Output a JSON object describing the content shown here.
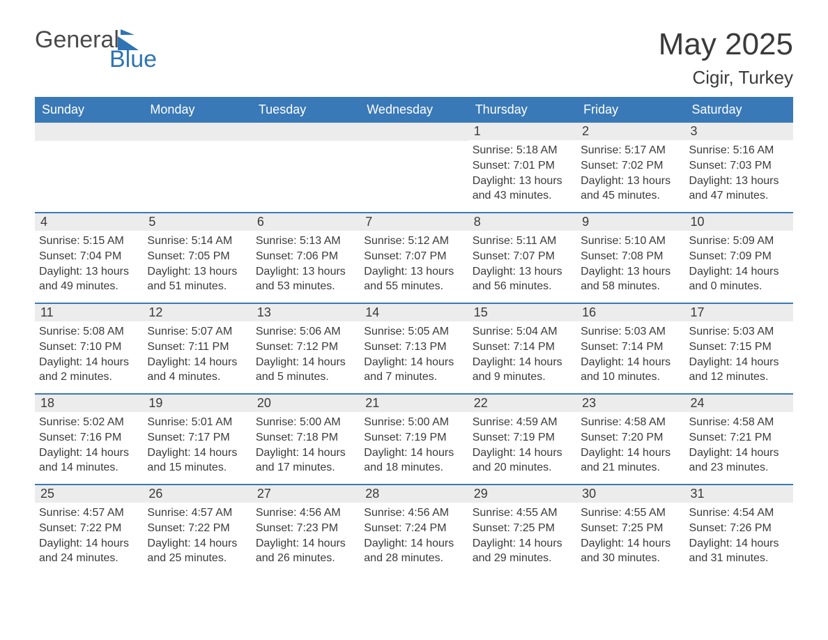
{
  "logo": {
    "word1": "General",
    "word2": "Blue"
  },
  "title": "May 2025",
  "location": "Cigir, Turkey",
  "colors": {
    "header_bg": "#3a79b7",
    "header_text": "#ffffff",
    "rule": "#3a79b7",
    "daynum_bg": "#ececec",
    "text": "#3a3a3a",
    "logo_accent": "#2e74b5"
  },
  "days_of_week": [
    "Sunday",
    "Monday",
    "Tuesday",
    "Wednesday",
    "Thursday",
    "Friday",
    "Saturday"
  ],
  "weeks": [
    [
      null,
      null,
      null,
      null,
      {
        "n": "1",
        "sr": "Sunrise: 5:18 AM",
        "ss": "Sunset: 7:01 PM",
        "d1": "Daylight: 13 hours",
        "d2": "and 43 minutes."
      },
      {
        "n": "2",
        "sr": "Sunrise: 5:17 AM",
        "ss": "Sunset: 7:02 PM",
        "d1": "Daylight: 13 hours",
        "d2": "and 45 minutes."
      },
      {
        "n": "3",
        "sr": "Sunrise: 5:16 AM",
        "ss": "Sunset: 7:03 PM",
        "d1": "Daylight: 13 hours",
        "d2": "and 47 minutes."
      }
    ],
    [
      {
        "n": "4",
        "sr": "Sunrise: 5:15 AM",
        "ss": "Sunset: 7:04 PM",
        "d1": "Daylight: 13 hours",
        "d2": "and 49 minutes."
      },
      {
        "n": "5",
        "sr": "Sunrise: 5:14 AM",
        "ss": "Sunset: 7:05 PM",
        "d1": "Daylight: 13 hours",
        "d2": "and 51 minutes."
      },
      {
        "n": "6",
        "sr": "Sunrise: 5:13 AM",
        "ss": "Sunset: 7:06 PM",
        "d1": "Daylight: 13 hours",
        "d2": "and 53 minutes."
      },
      {
        "n": "7",
        "sr": "Sunrise: 5:12 AM",
        "ss": "Sunset: 7:07 PM",
        "d1": "Daylight: 13 hours",
        "d2": "and 55 minutes."
      },
      {
        "n": "8",
        "sr": "Sunrise: 5:11 AM",
        "ss": "Sunset: 7:07 PM",
        "d1": "Daylight: 13 hours",
        "d2": "and 56 minutes."
      },
      {
        "n": "9",
        "sr": "Sunrise: 5:10 AM",
        "ss": "Sunset: 7:08 PM",
        "d1": "Daylight: 13 hours",
        "d2": "and 58 minutes."
      },
      {
        "n": "10",
        "sr": "Sunrise: 5:09 AM",
        "ss": "Sunset: 7:09 PM",
        "d1": "Daylight: 14 hours",
        "d2": "and 0 minutes."
      }
    ],
    [
      {
        "n": "11",
        "sr": "Sunrise: 5:08 AM",
        "ss": "Sunset: 7:10 PM",
        "d1": "Daylight: 14 hours",
        "d2": "and 2 minutes."
      },
      {
        "n": "12",
        "sr": "Sunrise: 5:07 AM",
        "ss": "Sunset: 7:11 PM",
        "d1": "Daylight: 14 hours",
        "d2": "and 4 minutes."
      },
      {
        "n": "13",
        "sr": "Sunrise: 5:06 AM",
        "ss": "Sunset: 7:12 PM",
        "d1": "Daylight: 14 hours",
        "d2": "and 5 minutes."
      },
      {
        "n": "14",
        "sr": "Sunrise: 5:05 AM",
        "ss": "Sunset: 7:13 PM",
        "d1": "Daylight: 14 hours",
        "d2": "and 7 minutes."
      },
      {
        "n": "15",
        "sr": "Sunrise: 5:04 AM",
        "ss": "Sunset: 7:14 PM",
        "d1": "Daylight: 14 hours",
        "d2": "and 9 minutes."
      },
      {
        "n": "16",
        "sr": "Sunrise: 5:03 AM",
        "ss": "Sunset: 7:14 PM",
        "d1": "Daylight: 14 hours",
        "d2": "and 10 minutes."
      },
      {
        "n": "17",
        "sr": "Sunrise: 5:03 AM",
        "ss": "Sunset: 7:15 PM",
        "d1": "Daylight: 14 hours",
        "d2": "and 12 minutes."
      }
    ],
    [
      {
        "n": "18",
        "sr": "Sunrise: 5:02 AM",
        "ss": "Sunset: 7:16 PM",
        "d1": "Daylight: 14 hours",
        "d2": "and 14 minutes."
      },
      {
        "n": "19",
        "sr": "Sunrise: 5:01 AM",
        "ss": "Sunset: 7:17 PM",
        "d1": "Daylight: 14 hours",
        "d2": "and 15 minutes."
      },
      {
        "n": "20",
        "sr": "Sunrise: 5:00 AM",
        "ss": "Sunset: 7:18 PM",
        "d1": "Daylight: 14 hours",
        "d2": "and 17 minutes."
      },
      {
        "n": "21",
        "sr": "Sunrise: 5:00 AM",
        "ss": "Sunset: 7:19 PM",
        "d1": "Daylight: 14 hours",
        "d2": "and 18 minutes."
      },
      {
        "n": "22",
        "sr": "Sunrise: 4:59 AM",
        "ss": "Sunset: 7:19 PM",
        "d1": "Daylight: 14 hours",
        "d2": "and 20 minutes."
      },
      {
        "n": "23",
        "sr": "Sunrise: 4:58 AM",
        "ss": "Sunset: 7:20 PM",
        "d1": "Daylight: 14 hours",
        "d2": "and 21 minutes."
      },
      {
        "n": "24",
        "sr": "Sunrise: 4:58 AM",
        "ss": "Sunset: 7:21 PM",
        "d1": "Daylight: 14 hours",
        "d2": "and 23 minutes."
      }
    ],
    [
      {
        "n": "25",
        "sr": "Sunrise: 4:57 AM",
        "ss": "Sunset: 7:22 PM",
        "d1": "Daylight: 14 hours",
        "d2": "and 24 minutes."
      },
      {
        "n": "26",
        "sr": "Sunrise: 4:57 AM",
        "ss": "Sunset: 7:22 PM",
        "d1": "Daylight: 14 hours",
        "d2": "and 25 minutes."
      },
      {
        "n": "27",
        "sr": "Sunrise: 4:56 AM",
        "ss": "Sunset: 7:23 PM",
        "d1": "Daylight: 14 hours",
        "d2": "and 26 minutes."
      },
      {
        "n": "28",
        "sr": "Sunrise: 4:56 AM",
        "ss": "Sunset: 7:24 PM",
        "d1": "Daylight: 14 hours",
        "d2": "and 28 minutes."
      },
      {
        "n": "29",
        "sr": "Sunrise: 4:55 AM",
        "ss": "Sunset: 7:25 PM",
        "d1": "Daylight: 14 hours",
        "d2": "and 29 minutes."
      },
      {
        "n": "30",
        "sr": "Sunrise: 4:55 AM",
        "ss": "Sunset: 7:25 PM",
        "d1": "Daylight: 14 hours",
        "d2": "and 30 minutes."
      },
      {
        "n": "31",
        "sr": "Sunrise: 4:54 AM",
        "ss": "Sunset: 7:26 PM",
        "d1": "Daylight: 14 hours",
        "d2": "and 31 minutes."
      }
    ]
  ]
}
